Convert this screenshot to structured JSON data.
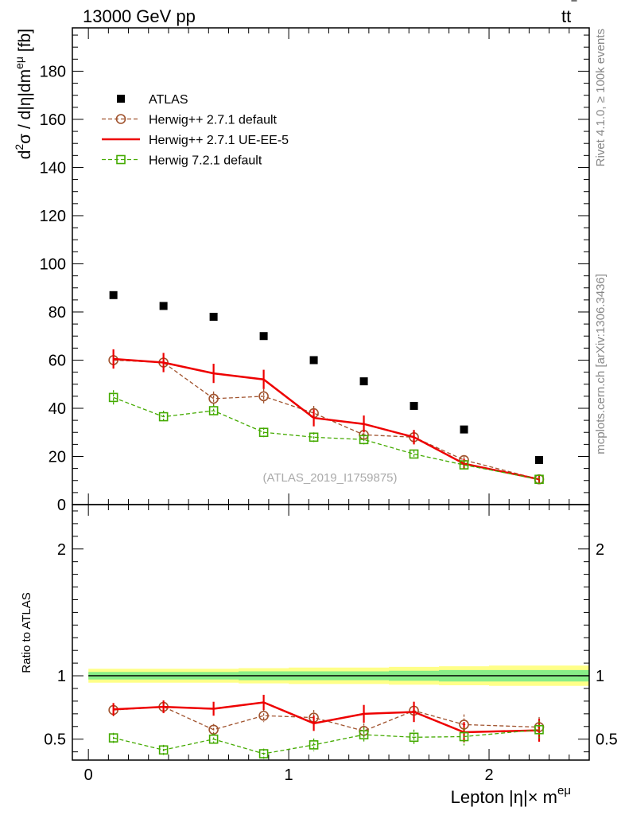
{
  "header": {
    "left": "13000 GeV pp",
    "right_main": "tt",
    "right_bar": "‾"
  },
  "side": {
    "rivet": "Rivet 4.1.0, ≥ 100k events",
    "mcplots": "mcplots.cern.ch [arXiv:1306.3436]"
  },
  "colors": {
    "atlas": "#000000",
    "herwigpp_default": "#a0522d",
    "herwigpp_ueee5": "#ee0000",
    "herwig7": "#44aa00",
    "band_yellow": "#ffff88",
    "band_green": "#88ee88"
  },
  "chart_data": [
    {
      "type": "scatter",
      "title": "",
      "ylabel": {
        "base": "d",
        "sup1": "2",
        "mid": "σ / d|η|dm",
        "sup2": "eμ",
        "unit": " [fb]"
      },
      "annotation": "(ATLAS_2019_I1759875)",
      "xlim": [
        -0.08,
        2.5
      ],
      "ylim": [
        0,
        198
      ],
      "yticks": [
        0,
        20,
        40,
        60,
        80,
        100,
        120,
        140,
        160,
        180
      ],
      "ytick_labels": [
        "0",
        "20",
        "40",
        "60",
        "80",
        "100",
        "120",
        "140",
        "160",
        "180"
      ],
      "x": [
        0.125,
        0.375,
        0.625,
        0.875,
        1.125,
        1.375,
        1.625,
        1.875,
        2.25
      ],
      "legend": {
        "placement": "top-left"
      },
      "series": [
        {
          "name": "ATLAS",
          "key": "atlas",
          "values": [
            87,
            82.5,
            78,
            70,
            60,
            51.2,
            41,
            31.2,
            18.5
          ],
          "errors": [
            0,
            0,
            0,
            0,
            0,
            0,
            0,
            0,
            0
          ]
        },
        {
          "name": "Herwig++ 2.7.1 default",
          "key": "herwigpp_default",
          "values": [
            60,
            59,
            44,
            45,
            38,
            29,
            28,
            18.5,
            10.5
          ],
          "errors": [
            3.5,
            3,
            3,
            3,
            3,
            2.5,
            2.5,
            1.5,
            1
          ]
        },
        {
          "name": "Herwig++ 2.7.1 UE-EE-5",
          "key": "herwigpp_ueee5",
          "values": [
            60.5,
            59,
            54.5,
            52,
            36,
            33.5,
            28,
            17,
            10.5
          ],
          "errors": [
            4,
            4,
            4,
            4,
            3.5,
            3.5,
            3,
            2,
            1.5
          ]
        },
        {
          "name": "Herwig 7.2.1 default",
          "key": "herwig7",
          "values": [
            44.5,
            36.5,
            39,
            30,
            28,
            27,
            21,
            16.5,
            10.5
          ],
          "errors": [
            3,
            2.5,
            2.5,
            2,
            2,
            2,
            1.5,
            1.5,
            1
          ]
        }
      ]
    },
    {
      "type": "scatter",
      "title": "",
      "ylabel": "Ratio to ATLAS",
      "xlabel": {
        "main": "Lepton |η|× m",
        "sup": "eμ"
      },
      "xlim": [
        -0.08,
        2.5
      ],
      "ylim": [
        0.335,
        2.35
      ],
      "yticks": [
        0.5,
        1,
        2
      ],
      "ytick_labels": [
        "0.5",
        "1",
        "2"
      ],
      "xticks": [
        0,
        1,
        2
      ],
      "xtick_labels": [
        "0",
        "1",
        "2"
      ],
      "x": [
        0.125,
        0.375,
        0.625,
        0.875,
        1.125,
        1.375,
        1.625,
        1.875,
        2.25
      ],
      "reference": 1,
      "band_yellow_halfwidth": [
        0.055,
        0.055,
        0.055,
        0.06,
        0.065,
        0.065,
        0.07,
        0.075,
        0.08
      ],
      "band_green_halfwidth": [
        0.03,
        0.03,
        0.03,
        0.035,
        0.035,
        0.035,
        0.04,
        0.045,
        0.045
      ],
      "series": [
        {
          "name": "Herwig++ 2.7.1 default",
          "key": "herwigpp_default",
          "values": [
            0.73,
            0.755,
            0.575,
            0.685,
            0.67,
            0.565,
            0.725,
            0.615,
            0.595
          ],
          "errors": [
            0.05,
            0.05,
            0.045,
            0.05,
            0.06,
            0.06,
            0.07,
            0.08,
            0.08
          ]
        },
        {
          "name": "Herwig++ 2.7.1 UE-EE-5",
          "key": "herwigpp_ueee5",
          "values": [
            0.735,
            0.755,
            0.74,
            0.79,
            0.625,
            0.7,
            0.715,
            0.555,
            0.57
          ],
          "errors": [
            0.05,
            0.05,
            0.055,
            0.06,
            0.06,
            0.07,
            0.08,
            0.08,
            0.09
          ]
        },
        {
          "name": "Herwig 7.2.1 default",
          "key": "herwig7",
          "values": [
            0.51,
            0.415,
            0.5,
            0.385,
            0.455,
            0.535,
            0.515,
            0.52,
            0.575
          ],
          "errors": [
            0.04,
            0.04,
            0.045,
            0.04,
            0.05,
            0.06,
            0.06,
            0.07,
            0.07
          ]
        }
      ]
    }
  ]
}
